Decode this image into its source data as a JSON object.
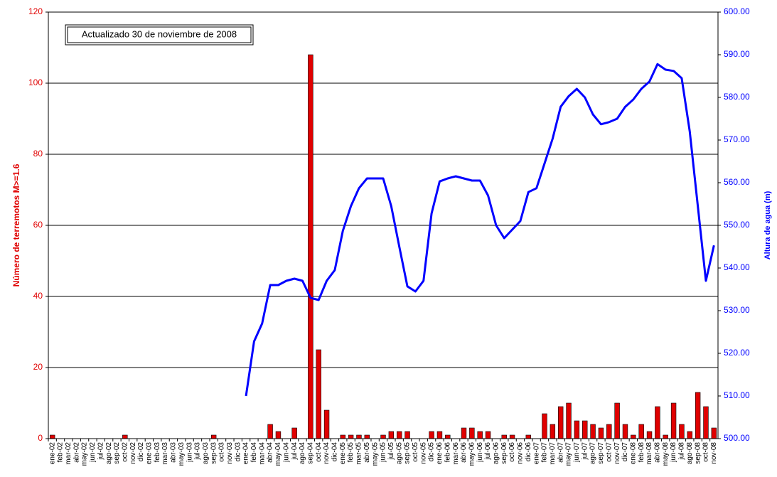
{
  "chart_data": {
    "type": "bar",
    "annotation": "Actualizado 30 de noviembre de 2008",
    "ylabel": "Número de terremotos M>=1.6",
    "y2label": "Altura de agua (m)",
    "categories": [
      "ene-02",
      "feb-02",
      "mar-02",
      "abr-02",
      "may-02",
      "jun-02",
      "jul-02",
      "ago-02",
      "sep-02",
      "oct-02",
      "nov-02",
      "dic-02",
      "ene-03",
      "feb-03",
      "mar-03",
      "abr-03",
      "may-03",
      "jun-03",
      "jul-03",
      "ago-03",
      "sep-03",
      "oct-03",
      "nov-03",
      "dic-03",
      "ene-04",
      "feb-04",
      "mar-04",
      "abr-04",
      "may-04",
      "jun-04",
      "jul-04",
      "ago-04",
      "sep-04",
      "oct-04",
      "nov-04",
      "dic-04",
      "ene-05",
      "feb-05",
      "mar-05",
      "abr-05",
      "may-05",
      "jun-05",
      "jul-05",
      "ago-05",
      "sep-05",
      "oct-05",
      "nov-05",
      "dic-05",
      "ene-06",
      "feb-06",
      "mar-06",
      "abr-06",
      "may-06",
      "jun-06",
      "jul-06",
      "ago-06",
      "sep-06",
      "oct-06",
      "nov-06",
      "dic-06",
      "ene-07",
      "feb-07",
      "mar-07",
      "abr-07",
      "may-07",
      "jun-07",
      "jul-07",
      "ago-07",
      "sep-07",
      "oct-07",
      "nov-07",
      "dic-07",
      "ene-08",
      "feb-08",
      "mar-08",
      "abr-08",
      "may-08",
      "jun-08",
      "jul-08",
      "ago-08",
      "sep-08",
      "oct-08",
      "nov-08"
    ],
    "series": [
      {
        "type": "bar",
        "color": "#e00000",
        "values": [
          1,
          0,
          0,
          0,
          0,
          0,
          0,
          0,
          0,
          1,
          0,
          0,
          0,
          0,
          0,
          0,
          0,
          0,
          0,
          0,
          1,
          0,
          0,
          0,
          0,
          0,
          0,
          4,
          2,
          0,
          3,
          0,
          108,
          25,
          8,
          0,
          1,
          1,
          1,
          1,
          0,
          1,
          2,
          2,
          2,
          0,
          0,
          2,
          2,
          1,
          0,
          3,
          3,
          2,
          2,
          0,
          1,
          1,
          0,
          1,
          0,
          7,
          4,
          9,
          10,
          5,
          5,
          4,
          3,
          4,
          10,
          4,
          1,
          4,
          2,
          9,
          1,
          10,
          4,
          2,
          13,
          9,
          3
        ]
      },
      {
        "type": "line",
        "axis": "y2",
        "color": "#0000ff",
        "values": [
          null,
          null,
          null,
          null,
          null,
          null,
          null,
          null,
          null,
          null,
          null,
          null,
          null,
          null,
          null,
          null,
          null,
          null,
          null,
          null,
          null,
          null,
          null,
          null,
          510,
          522.8,
          527,
          536,
          536,
          537,
          537.5,
          537,
          533,
          532.5,
          537,
          539.5,
          548.7,
          554.5,
          558.7,
          561,
          561,
          561,
          554.5,
          545,
          535.7,
          534.5,
          537,
          552.8,
          560.3,
          561,
          561.5,
          561,
          560.5,
          560.5,
          557,
          550,
          547,
          549,
          551,
          557.8,
          558.7,
          564.5,
          570.3,
          577.8,
          580.3,
          582,
          580,
          576,
          573.7,
          574.2,
          575,
          577.8,
          579.5,
          582,
          583.7,
          587.8,
          586.5,
          586.2,
          584.5,
          572,
          554.5,
          537,
          545.3
        ]
      }
    ],
    "ylim": [
      0,
      120
    ],
    "yticks": [
      0,
      20,
      40,
      60,
      80,
      100,
      120
    ],
    "y2lim": [
      500,
      600
    ],
    "y2ticks": [
      {
        "value": 500,
        "label": "500.00"
      },
      {
        "value": 510,
        "label": "510.00"
      },
      {
        "value": 520,
        "label": "520.00"
      },
      {
        "value": 530,
        "label": "530.00"
      },
      {
        "value": 540,
        "label": "540.00"
      },
      {
        "value": 550,
        "label": "550.00"
      },
      {
        "value": 560,
        "label": "560.00"
      },
      {
        "value": 570,
        "label": "570.00"
      },
      {
        "value": 580,
        "label": "580.00"
      },
      {
        "value": 590,
        "label": "590.00"
      },
      {
        "value": 600,
        "label": "600.00"
      }
    ],
    "grid": true
  }
}
